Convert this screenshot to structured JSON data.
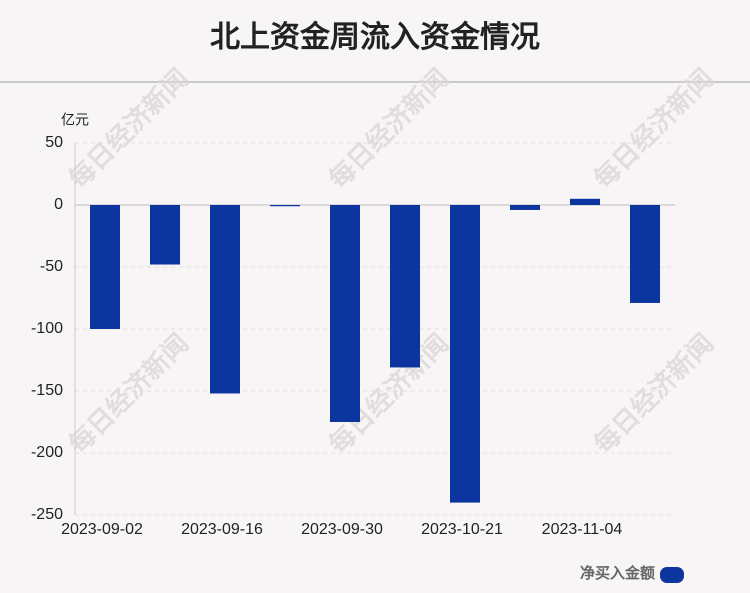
{
  "chart_data": {
    "type": "bar",
    "title": "北上资金周流入资金情况",
    "y_label": "亿元",
    "watermark": "每日经济新闻",
    "categories": [
      "2023-09-02",
      null,
      "2023-09-16",
      null,
      "2023-09-30",
      null,
      "2023-10-21",
      null,
      "2023-11-04",
      null
    ],
    "series": [
      {
        "name": "净买入金额",
        "color": "#0c35a0",
        "values": [
          -100,
          -48,
          -152,
          -1,
          -175,
          -131,
          -240,
          -4,
          5,
          -79
        ]
      }
    ],
    "ylim": [
      -250,
      50
    ],
    "yticks": [
      50,
      0,
      -50,
      -100,
      -150,
      -200,
      -250
    ],
    "grid": true,
    "legend": "bottom-right"
  }
}
